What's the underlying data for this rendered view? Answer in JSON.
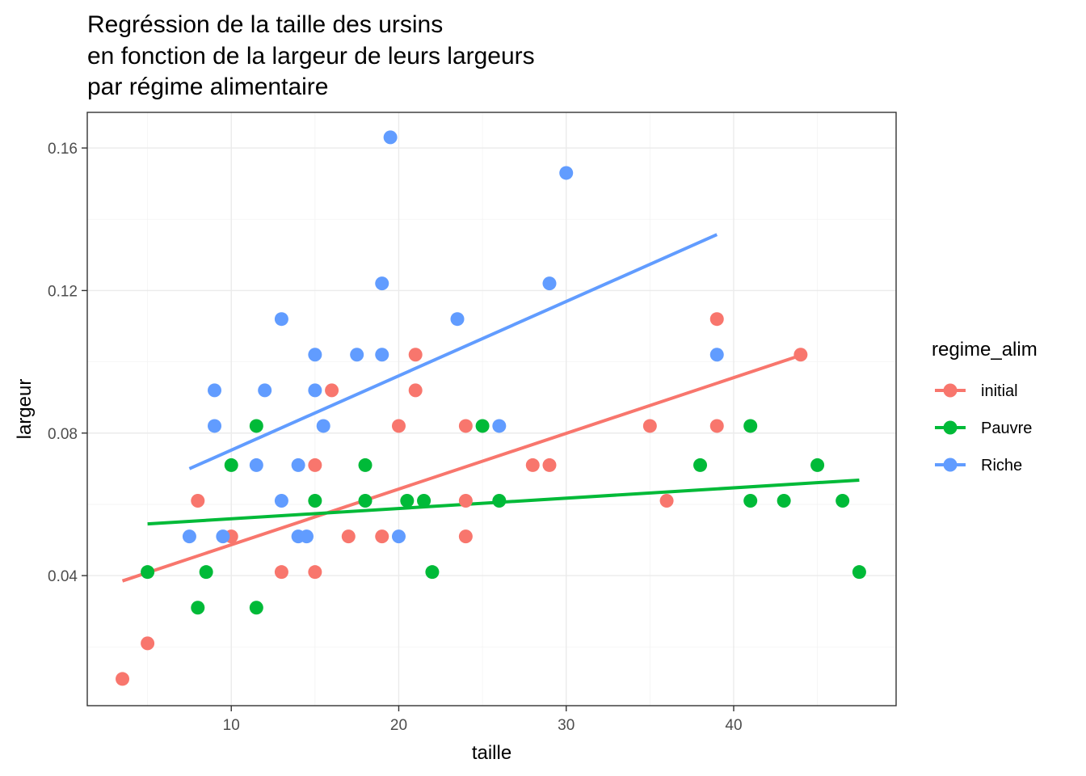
{
  "chart_data": {
    "type": "scatter",
    "title": [
      "Regréssion de la taille des ursins",
      "en fonction de la largeur de leurs largeurs",
      "par régime alimentaire"
    ],
    "xlabel": "taille",
    "ylabel": "largeur",
    "xlim": [
      1.4,
      49.7
    ],
    "ylim": [
      0.0035,
      0.17
    ],
    "x_ticks": [
      10,
      20,
      30,
      40
    ],
    "x_tick_labels": [
      "10",
      "20",
      "30",
      "40"
    ],
    "y_ticks": [
      0.04,
      0.08,
      0.12,
      0.16
    ],
    "y_tick_labels": [
      "0.04",
      "0.08",
      "0.12",
      "0.16"
    ],
    "grid": true,
    "legend": {
      "title": "regime_alim",
      "position": "right"
    },
    "series": [
      {
        "name": "initial",
        "color": "#F8766D",
        "points": [
          [
            3.5,
            0.011
          ],
          [
            5.0,
            0.021
          ],
          [
            8.0,
            0.061
          ],
          [
            10.0,
            0.051
          ],
          [
            13.0,
            0.041
          ],
          [
            15.0,
            0.071
          ],
          [
            15.0,
            0.041
          ],
          [
            16.0,
            0.092
          ],
          [
            17.0,
            0.051
          ],
          [
            19.0,
            0.051
          ],
          [
            20.0,
            0.082
          ],
          [
            21.0,
            0.102
          ],
          [
            21.0,
            0.092
          ],
          [
            24.0,
            0.082
          ],
          [
            24.0,
            0.061
          ],
          [
            24.0,
            0.051
          ],
          [
            28.0,
            0.071
          ],
          [
            29.0,
            0.071
          ],
          [
            35.0,
            0.082
          ],
          [
            36.0,
            0.061
          ],
          [
            39.0,
            0.112
          ],
          [
            39.0,
            0.082
          ],
          [
            44.0,
            0.102
          ]
        ],
        "fit": [
          [
            3.5,
            0.0385
          ],
          [
            44.0,
            0.1018
          ]
        ]
      },
      {
        "name": "Pauvre",
        "color": "#00BA38",
        "points": [
          [
            5.0,
            0.041
          ],
          [
            8.0,
            0.031
          ],
          [
            8.5,
            0.041
          ],
          [
            10.0,
            0.071
          ],
          [
            11.5,
            0.082
          ],
          [
            11.5,
            0.031
          ],
          [
            15.0,
            0.061
          ],
          [
            18.0,
            0.071
          ],
          [
            18.0,
            0.061
          ],
          [
            20.5,
            0.061
          ],
          [
            21.5,
            0.061
          ],
          [
            22.0,
            0.041
          ],
          [
            25.0,
            0.082
          ],
          [
            26.0,
            0.061
          ],
          [
            38.0,
            0.071
          ],
          [
            41.0,
            0.082
          ],
          [
            41.0,
            0.061
          ],
          [
            43.0,
            0.061
          ],
          [
            45.0,
            0.071
          ],
          [
            46.5,
            0.061
          ],
          [
            47.5,
            0.041
          ]
        ],
        "fit": [
          [
            5.0,
            0.0545
          ],
          [
            47.5,
            0.0668
          ]
        ]
      },
      {
        "name": "Riche",
        "color": "#619CFF",
        "points": [
          [
            7.5,
            0.051
          ],
          [
            9.0,
            0.092
          ],
          [
            9.0,
            0.082
          ],
          [
            9.5,
            0.051
          ],
          [
            11.5,
            0.071
          ],
          [
            12.0,
            0.092
          ],
          [
            13.0,
            0.112
          ],
          [
            13.0,
            0.061
          ],
          [
            14.0,
            0.071
          ],
          [
            14.0,
            0.051
          ],
          [
            14.5,
            0.051
          ],
          [
            15.0,
            0.102
          ],
          [
            15.0,
            0.092
          ],
          [
            15.5,
            0.082
          ],
          [
            17.5,
            0.102
          ],
          [
            19.0,
            0.122
          ],
          [
            19.0,
            0.102
          ],
          [
            19.5,
            0.163
          ],
          [
            20.0,
            0.051
          ],
          [
            23.5,
            0.112
          ],
          [
            26.0,
            0.082
          ],
          [
            29.0,
            0.122
          ],
          [
            30.0,
            0.153
          ],
          [
            39.0,
            0.102
          ]
        ],
        "fit": [
          [
            7.5,
            0.07
          ],
          [
            39.0,
            0.1357
          ]
        ]
      }
    ]
  }
}
